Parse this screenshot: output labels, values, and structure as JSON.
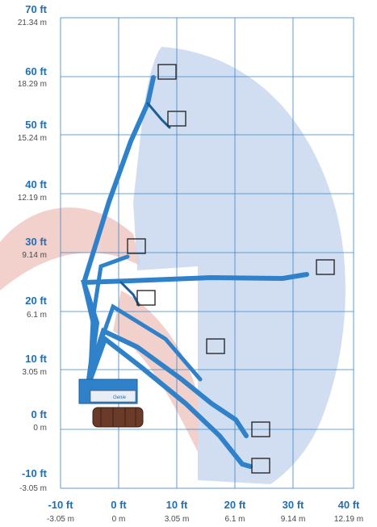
{
  "colors": {
    "grid": "#3a86c8",
    "envelope": "#c9d8ee",
    "boom": "#2f82c9",
    "boom_dark": "#1a5f9a",
    "axis_ft": "#1f6fb5",
    "axis_m": "#4a4a4a",
    "watermark": "#e7a9a0",
    "tracks": "#6b3b2a"
  },
  "axes": {
    "y_ticks": [
      {
        "ft": "70 ft",
        "m": "21.34 m"
      },
      {
        "ft": "60 ft",
        "m": "18.29 m"
      },
      {
        "ft": "50 ft",
        "m": "15.24 m"
      },
      {
        "ft": "40 ft",
        "m": "12.19 m"
      },
      {
        "ft": "30 ft",
        "m": "9.14 m"
      },
      {
        "ft": "20 ft",
        "m": "6.1 m"
      },
      {
        "ft": "10 ft",
        "m": "3.05 m"
      },
      {
        "ft": "0 ft",
        "m": "0 m"
      },
      {
        "ft": "-10 ft",
        "m": "-3.05 m"
      }
    ],
    "x_ticks": [
      {
        "ft": "-10 ft",
        "m": "-3.05 m"
      },
      {
        "ft": "0 ft",
        "m": "0 m"
      },
      {
        "ft": "10 ft",
        "m": "3.05 m"
      },
      {
        "ft": "20 ft",
        "m": "6.1 m"
      },
      {
        "ft": "30 ft",
        "m": "9.14 m"
      },
      {
        "ft": "40 ft",
        "m": "12.19 m"
      }
    ]
  },
  "machine": {
    "brand_text": "Genie",
    "icons": [
      "boom-lift-icon",
      "platform-basket-icon",
      "crawler-track-icon"
    ]
  }
}
